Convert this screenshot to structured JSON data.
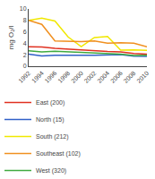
{
  "chart_data": {
    "type": "line",
    "ylabel": "mg O₂/l",
    "x": [
      1992,
      1994,
      1996,
      1998,
      2000,
      2002,
      2004,
      2006,
      2008,
      2010
    ],
    "series": [
      {
        "name": "East (200)",
        "color": "#e03020",
        "values": [
          3.4,
          3.35,
          3.1,
          2.95,
          2.75,
          2.65,
          2.55,
          2.5,
          2.2,
          2.1
        ]
      },
      {
        "name": "North (15)",
        "color": "#3060c8",
        "values": [
          2.1,
          1.8,
          1.9,
          1.85,
          1.9,
          1.9,
          2.0,
          2.0,
          1.75,
          1.7
        ]
      },
      {
        "name": "South (212)",
        "color": "#f0e800",
        "values": [
          8.0,
          8.4,
          7.9,
          5.1,
          3.4,
          5.0,
          5.2,
          2.8,
          2.85,
          2.75
        ]
      },
      {
        "name": "Southeast (102)",
        "color": "#f09020",
        "values": [
          8.0,
          7.3,
          4.4,
          4.3,
          4.3,
          4.4,
          4.0,
          4.1,
          4.0,
          3.4
        ]
      },
      {
        "name": "West (320)",
        "color": "#40aa40",
        "values": [
          2.7,
          2.5,
          2.6,
          2.5,
          2.4,
          2.4,
          2.3,
          2.1,
          1.85,
          1.9
        ]
      }
    ],
    "xlim": [
      1992,
      2010
    ],
    "xticks": [
      1992,
      1994,
      1996,
      1998,
      2000,
      2002,
      2004,
      2006,
      2008,
      2010
    ],
    "ylim": [
      0,
      10
    ],
    "yticks": [
      0,
      2,
      4,
      6,
      8,
      10
    ],
    "grid": false,
    "legend": "bottom"
  }
}
